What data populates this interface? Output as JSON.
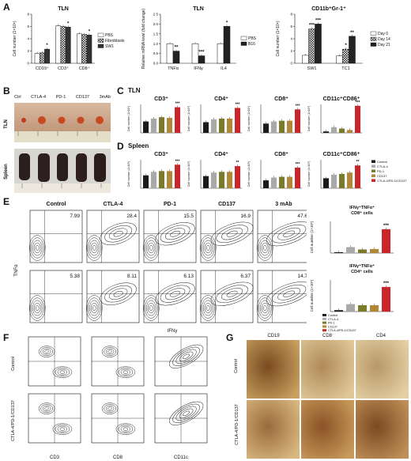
{
  "panels": {
    "A": "A",
    "B": "B",
    "C": "C",
    "D": "D",
    "E": "E",
    "F": "F",
    "G": "G"
  },
  "panel_A": {
    "chart1": {
      "title": "TLN",
      "ylabel": "Cell number (1×10⁶)",
      "categories": [
        "CD19⁺",
        "CD3⁺",
        "CD8⁺"
      ],
      "legend": [
        "PBS",
        "Fibroblasts",
        "SW1"
      ],
      "yticks": [
        "0",
        "2",
        "4",
        "6",
        "8"
      ],
      "series": [
        {
          "name": "PBS",
          "values": [
            1.6,
            6.1,
            4.8
          ]
        },
        {
          "name": "Fibroblasts",
          "values": [
            1.7,
            6.0,
            4.7
          ]
        },
        {
          "name": "SW1",
          "values": [
            2.3,
            5.9,
            4.6
          ]
        }
      ],
      "stars": [
        "*",
        "*",
        "*"
      ]
    },
    "chart2": {
      "title": "TLN",
      "ylabel": "Relative mRNA level (fold change)",
      "categories": [
        "TNFα",
        "IFNγ",
        "IL4"
      ],
      "legend": [
        "PBS",
        "B16"
      ],
      "yticks": [
        "0.0",
        "0.5",
        "1.0",
        "1.5",
        "2.0",
        "2.5"
      ],
      "series": [
        {
          "name": "PBS",
          "values": [
            1.0,
            1.0,
            1.0
          ]
        },
        {
          "name": "B16",
          "values": [
            0.62,
            0.38,
            1.88
          ]
        }
      ],
      "stars": [
        "**",
        "***",
        "*"
      ]
    },
    "chart3": {
      "title": "CD11b⁺Gr-1⁺",
      "ylabel": "Cell number (1×10⁶)",
      "categories": [
        "SW1",
        "TC1"
      ],
      "legend": [
        "Day 0",
        "Day 14",
        "Day 21"
      ],
      "yticks": [
        "0",
        "2",
        "4",
        "6",
        "8"
      ],
      "series": [
        {
          "name": "Day 0",
          "values": [
            1.3,
            1.2
          ]
        },
        {
          "name": "Day 14",
          "values": [
            5.6,
            2.3
          ]
        },
        {
          "name": "Day 21",
          "values": [
            6.4,
            4.4
          ]
        }
      ],
      "stars": [
        [
          "***",
          "***"
        ],
        [
          "*",
          "**"
        ]
      ]
    }
  },
  "panel_B": {
    "labels": [
      "Ctrl",
      "CTLA-4",
      "PD-1",
      "CD137",
      "3mAb"
    ],
    "tln": "TLN",
    "spleen": "Spleen"
  },
  "panel_C": {
    "section": "TLN",
    "ylabel": "Cell number (1×10⁶)",
    "charts": [
      {
        "title": "CD3⁺",
        "values": [
          1.6,
          2.0,
          2.2,
          2.1,
          3.6
        ],
        "star": "***"
      },
      {
        "title": "CD4⁺",
        "values": [
          1.5,
          1.9,
          2.0,
          2.0,
          3.5
        ],
        "star": "***"
      },
      {
        "title": "CD8⁺",
        "values": [
          1.3,
          1.6,
          1.7,
          1.7,
          3.3
        ],
        "star": "***"
      },
      {
        "title": "CD11c⁺CD86⁺",
        "values": [
          0.2,
          0.8,
          0.6,
          0.4,
          3.8
        ],
        "star": "***"
      }
    ]
  },
  "panel_D": {
    "section": "Spleen",
    "ylabel": "Cell number (1×10⁶)",
    "charts": [
      {
        "title": "CD3⁺",
        "values": [
          1.8,
          2.3,
          2.4,
          2.4,
          3.3
        ],
        "star": "***"
      },
      {
        "title": "CD4⁺",
        "values": [
          1.7,
          2.2,
          2.3,
          2.3,
          3.1
        ],
        "star": "**"
      },
      {
        "title": "CD8⁺",
        "values": [
          1.1,
          1.5,
          1.6,
          1.6,
          2.9
        ],
        "star": "***"
      },
      {
        "title": "CD11c⁺CD86⁺",
        "values": [
          1.4,
          1.9,
          2.0,
          2.2,
          3.2
        ],
        "star": "**"
      }
    ],
    "legend": [
      "Control",
      "CTLA-4",
      "PD-1",
      "CD137",
      "CTLA-4/PD-1/CD137"
    ]
  },
  "panel_E": {
    "columns": [
      "Control",
      "CTLA-4",
      "PD-1",
      "CD137",
      "3 mAb"
    ],
    "row1": [
      "7.99",
      "28.4",
      "15.5",
      "16.9",
      "47.6"
    ],
    "row2": [
      "5.38",
      "8.11",
      "6.13",
      "6.37",
      "14.7"
    ],
    "yaxis": "TNFα",
    "xaxis": "IFNγ",
    "side1": {
      "title": "IFNγ⁺TNFα⁺ CD8⁺ cells",
      "values": [
        0.4,
        2.8,
        1.7,
        1.9,
        11.3
      ],
      "star": "***"
    },
    "side2": {
      "title": "IFNγ⁺TNFα⁺ CD4⁺ cells",
      "values": [
        0.4,
        2.1,
        1.8,
        1.8,
        7.0
      ],
      "star": "***"
    },
    "side_ylabel": "Cell number (1×10⁵)",
    "legend": [
      "Control",
      "CTLA-4",
      "PD-1",
      "CD137",
      "CTLA-4/PD-1/CD137"
    ]
  },
  "panel_F": {
    "rows": [
      "Control",
      "CTLA-4/PD-1/CD137"
    ],
    "xaxes": [
      "CD3",
      "CD8",
      "CD11c"
    ]
  },
  "panel_G": {
    "columns": [
      "CD19",
      "CD8",
      "CD4"
    ],
    "rows": [
      "Control",
      "CTLA-4/PD-1/CD137"
    ]
  },
  "colors": {
    "control": "#1a1a1a",
    "ctla4": "#a9a9a9",
    "pd1": "#7a7a2a",
    "cd137": "#b08838",
    "combo": "#c8262a"
  }
}
